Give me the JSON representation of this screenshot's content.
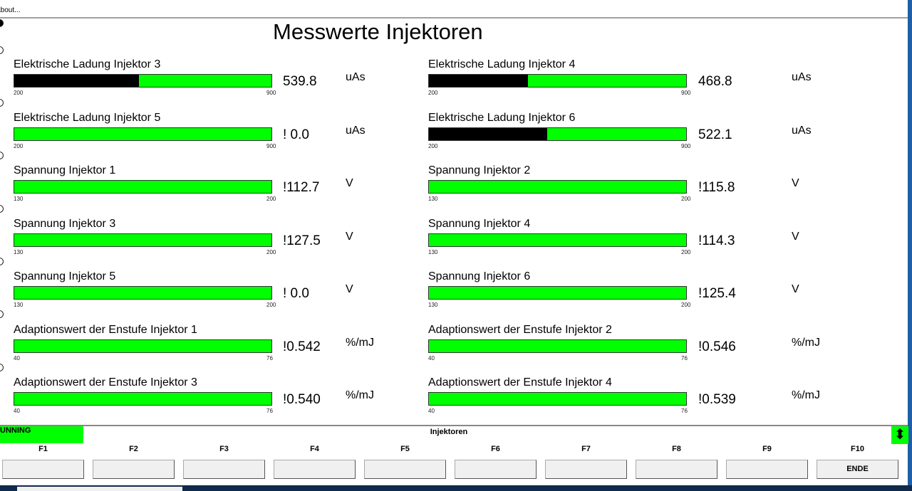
{
  "menu": {
    "about": "About..."
  },
  "title": "Messwerte Injektoren",
  "meters": [
    {
      "label": "Elektrische Ladung Injektor 3",
      "min": 200,
      "max": 900,
      "value": 539.8,
      "display": "539.8",
      "unit": "uAs"
    },
    {
      "label": "Elektrische Ladung Injektor 4",
      "min": 200,
      "max": 900,
      "value": 468.8,
      "display": "468.8",
      "unit": "uAs"
    },
    {
      "label": "Elektrische Ladung Injektor 5",
      "min": 200,
      "max": 900,
      "value": 0.0,
      "display": "! 0.0",
      "unit": "uAs"
    },
    {
      "label": "Elektrische Ladung Injektor 6",
      "min": 200,
      "max": 900,
      "value": 522.1,
      "display": "522.1",
      "unit": "uAs"
    },
    {
      "label": "Spannung Injektor 1",
      "min": 130,
      "max": 200,
      "value": 112.7,
      "display": "!112.7",
      "unit": "V"
    },
    {
      "label": "Spannung Injektor 2",
      "min": 130,
      "max": 200,
      "value": 115.8,
      "display": "!115.8",
      "unit": "V"
    },
    {
      "label": "Spannung Injektor 3",
      "min": 130,
      "max": 200,
      "value": 127.5,
      "display": "!127.5",
      "unit": "V"
    },
    {
      "label": "Spannung Injektor 4",
      "min": 130,
      "max": 200,
      "value": 114.3,
      "display": "!114.3",
      "unit": "V"
    },
    {
      "label": "Spannung Injektor 5",
      "min": 130,
      "max": 200,
      "value": 0.0,
      "display": "! 0.0",
      "unit": "V"
    },
    {
      "label": "Spannung Injektor 6",
      "min": 130,
      "max": 200,
      "value": 125.4,
      "display": "!125.4",
      "unit": "V"
    },
    {
      "label": "Adaptionswert der Enstufe Injektor 1",
      "min": 40,
      "max": 76,
      "value": 0.542,
      "display": "!0.542",
      "unit": "%/mJ"
    },
    {
      "label": "Adaptionswert der Enstufe Injektor 2",
      "min": 40,
      "max": 76,
      "value": 0.546,
      "display": "!0.546",
      "unit": "%/mJ"
    },
    {
      "label": "Adaptionswert der Enstufe Injektor 3",
      "min": 40,
      "max": 76,
      "value": 0.54,
      "display": "!0.540",
      "unit": "%/mJ"
    },
    {
      "label": "Adaptionswert der Enstufe Injektor 4",
      "min": 40,
      "max": 76,
      "value": 0.539,
      "display": "!0.539",
      "unit": "%/mJ"
    }
  ],
  "colors": {
    "bar": "#00ff00",
    "fill": "#000000",
    "status": "#00ff00"
  },
  "status": {
    "state": "UNNING",
    "screen": "Injektoren"
  },
  "fkeys": [
    {
      "key": "F1",
      "label": ""
    },
    {
      "key": "F2",
      "label": ""
    },
    {
      "key": "F3",
      "label": ""
    },
    {
      "key": "F4",
      "label": ""
    },
    {
      "key": "F5",
      "label": ""
    },
    {
      "key": "F6",
      "label": ""
    },
    {
      "key": "F7",
      "label": ""
    },
    {
      "key": "F8",
      "label": ""
    },
    {
      "key": "F9",
      "label": ""
    },
    {
      "key": "F10",
      "label": "ENDE"
    }
  ]
}
